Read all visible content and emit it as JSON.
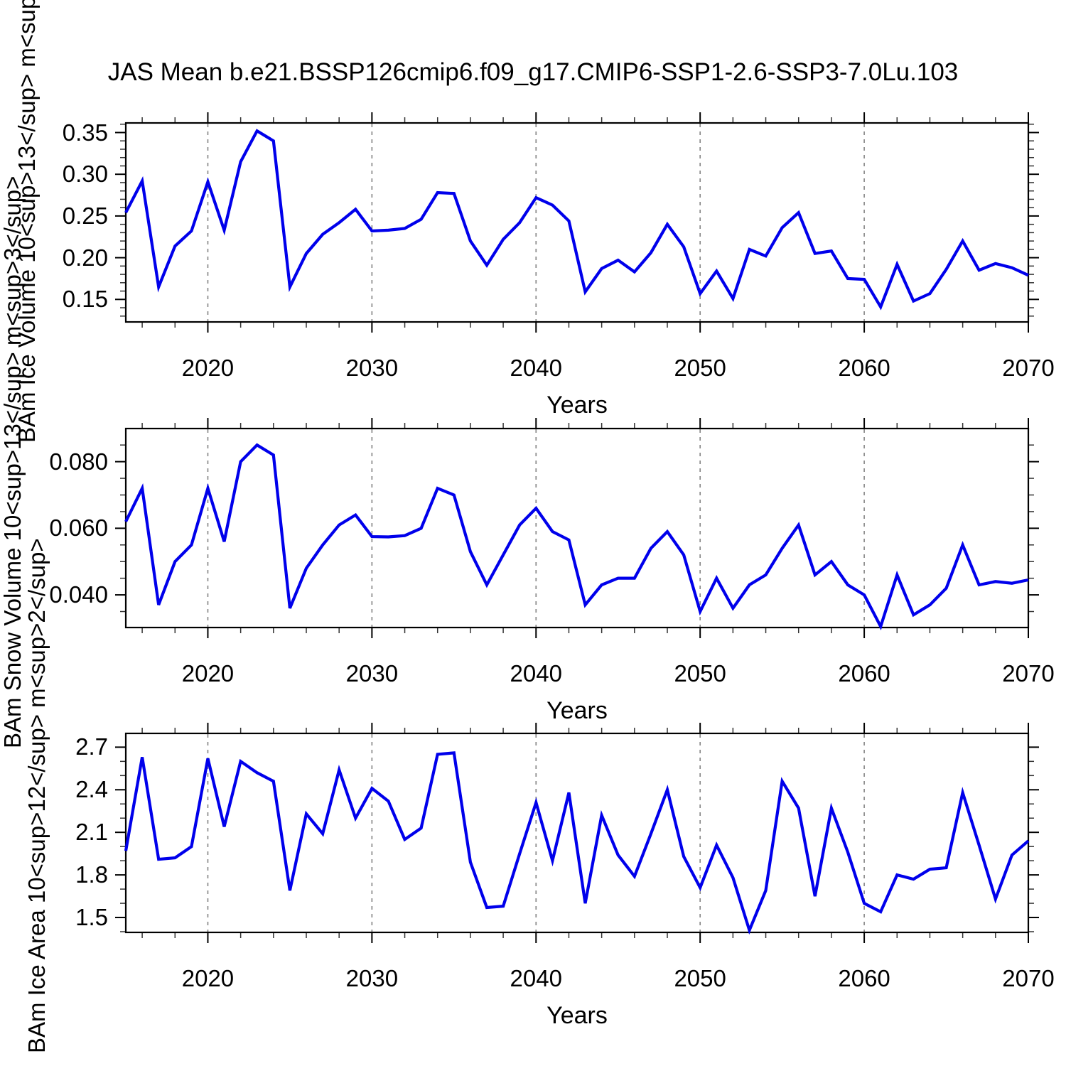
{
  "title": "JAS Mean b.e21.BSSP126cmip6.f09_g17.CMIP6-SSP1-2.6-SSP3-7.0Lu.103",
  "line_color": "#0000EB",
  "grid_color": "#8a8a8a",
  "chart_data": [
    {
      "type": "line",
      "name": "bam-ice-volume",
      "ylabel": "BAm Ice Volume 10^13 m^3",
      "xlabel": "Years",
      "xlim": [
        2015,
        2070
      ],
      "ylim": [
        0.123,
        0.3615
      ],
      "x": [
        2015,
        2016,
        2017,
        2018,
        2019,
        2020,
        2021,
        2022,
        2023,
        2024,
        2025,
        2026,
        2027,
        2028,
        2029,
        2030,
        2031,
        2032,
        2033,
        2034,
        2035,
        2036,
        2037,
        2038,
        2039,
        2040,
        2041,
        2042,
        2043,
        2044,
        2045,
        2046,
        2047,
        2048,
        2049,
        2050,
        2051,
        2052,
        2053,
        2054,
        2055,
        2056,
        2057,
        2058,
        2059,
        2060,
        2061,
        2062,
        2063,
        2064,
        2065,
        2066,
        2067,
        2068,
        2069,
        2070
      ],
      "values": [
        0.254,
        0.292,
        0.165,
        0.214,
        0.232,
        0.291,
        0.233,
        0.315,
        0.352,
        0.34,
        0.165,
        0.205,
        0.228,
        0.242,
        0.258,
        0.232,
        0.233,
        0.235,
        0.246,
        0.278,
        0.277,
        0.22,
        0.191,
        0.222,
        0.242,
        0.272,
        0.263,
        0.244,
        0.159,
        0.187,
        0.197,
        0.183,
        0.206,
        0.24,
        0.213,
        0.157,
        0.184,
        0.151,
        0.21,
        0.202,
        0.236,
        0.254,
        0.205,
        0.208,
        0.175,
        0.174,
        0.141,
        0.192,
        0.148,
        0.157,
        0.186,
        0.22,
        0.185,
        0.193,
        0.188,
        0.179
      ],
      "yticks": [
        {
          "v": 0.15,
          "label": "0.15"
        },
        {
          "v": 0.2,
          "label": "0.20"
        },
        {
          "v": 0.25,
          "label": "0.25"
        },
        {
          "v": 0.3,
          "label": "0.30"
        },
        {
          "v": 0.35,
          "label": "0.35"
        }
      ],
      "y_minor_step": 0.01,
      "xticks": [
        {
          "v": 2020,
          "label": "2020"
        },
        {
          "v": 2030,
          "label": "2030"
        },
        {
          "v": 2040,
          "label": "2040"
        },
        {
          "v": 2050,
          "label": "2050"
        },
        {
          "v": 2060,
          "label": "2060"
        },
        {
          "v": 2070,
          "label": "2070"
        }
      ],
      "x_minor_step": 2,
      "xgrid": [
        2020,
        2030,
        2040,
        2050,
        2060
      ]
    },
    {
      "type": "line",
      "name": "bam-snow-volume",
      "ylabel": "BAm Snow Volume 10^13 m^3",
      "xlabel": "Years",
      "xlim": [
        2015,
        2070
      ],
      "ylim": [
        0.0302,
        0.08995
      ],
      "x": [
        2015,
        2016,
        2017,
        2018,
        2019,
        2020,
        2021,
        2022,
        2023,
        2024,
        2025,
        2026,
        2027,
        2028,
        2029,
        2030,
        2031,
        2032,
        2033,
        2034,
        2035,
        2036,
        2037,
        2038,
        2039,
        2040,
        2041,
        2042,
        2043,
        2044,
        2045,
        2046,
        2047,
        2048,
        2049,
        2050,
        2051,
        2052,
        2053,
        2054,
        2055,
        2056,
        2057,
        2058,
        2059,
        2060,
        2061,
        2062,
        2063,
        2064,
        2065,
        2066,
        2067,
        2068,
        2069,
        2070
      ],
      "values": [
        0.062,
        0.072,
        0.037,
        0.05,
        0.055,
        0.072,
        0.056,
        0.08,
        0.085,
        0.082,
        0.036,
        0.048,
        0.055,
        0.061,
        0.064,
        0.0575,
        0.0574,
        0.0578,
        0.06,
        0.072,
        0.07,
        0.053,
        0.043,
        0.052,
        0.061,
        0.066,
        0.059,
        0.0565,
        0.037,
        0.043,
        0.045,
        0.045,
        0.054,
        0.059,
        0.052,
        0.035,
        0.045,
        0.036,
        0.043,
        0.046,
        0.054,
        0.061,
        0.046,
        0.05,
        0.043,
        0.04,
        0.0305,
        0.046,
        0.034,
        0.037,
        0.042,
        0.055,
        0.043,
        0.044,
        0.0435,
        0.0445
      ],
      "yticks": [
        {
          "v": 0.04,
          "label": "0.040"
        },
        {
          "v": 0.06,
          "label": "0.060"
        },
        {
          "v": 0.08,
          "label": "0.080"
        }
      ],
      "y_minor_step": 0.005,
      "xticks": [
        {
          "v": 2020,
          "label": "2020"
        },
        {
          "v": 2030,
          "label": "2030"
        },
        {
          "v": 2040,
          "label": "2040"
        },
        {
          "v": 2050,
          "label": "2050"
        },
        {
          "v": 2060,
          "label": "2060"
        },
        {
          "v": 2070,
          "label": "2070"
        }
      ],
      "x_minor_step": 2,
      "xgrid": [
        2020,
        2030,
        2040,
        2050,
        2060
      ]
    },
    {
      "type": "line",
      "name": "bam-ice-area",
      "ylabel": "BAm Ice Area 10^12 m^2",
      "xlabel": "Years",
      "xlim": [
        2015,
        2070
      ],
      "ylim": [
        1.395,
        2.797
      ],
      "x": [
        2015,
        2016,
        2017,
        2018,
        2019,
        2020,
        2021,
        2022,
        2023,
        2024,
        2025,
        2026,
        2027,
        2028,
        2029,
        2030,
        2031,
        2032,
        2033,
        2034,
        2035,
        2036,
        2037,
        2038,
        2039,
        2040,
        2041,
        2042,
        2043,
        2044,
        2045,
        2046,
        2047,
        2048,
        2049,
        2050,
        2051,
        2052,
        2053,
        2054,
        2055,
        2056,
        2057,
        2058,
        2059,
        2060,
        2061,
        2062,
        2063,
        2064,
        2065,
        2066,
        2067,
        2068,
        2069,
        2070
      ],
      "values": [
        1.97,
        2.63,
        1.91,
        1.92,
        2.0,
        2.62,
        2.14,
        2.6,
        2.52,
        2.46,
        1.69,
        2.23,
        2.09,
        2.54,
        2.2,
        2.41,
        2.32,
        2.05,
        2.13,
        2.65,
        2.66,
        1.89,
        1.57,
        1.58,
        1.95,
        2.31,
        1.9,
        2.38,
        1.6,
        2.22,
        1.94,
        1.79,
        2.09,
        2.4,
        1.93,
        1.71,
        2.01,
        1.78,
        1.41,
        1.69,
        2.46,
        2.27,
        1.65,
        2.27,
        1.96,
        1.6,
        1.54,
        1.8,
        1.77,
        1.84,
        1.85,
        2.38,
        2.01,
        1.63,
        1.94,
        2.04
      ],
      "yticks": [
        {
          "v": 1.5,
          "label": "1.5"
        },
        {
          "v": 1.8,
          "label": "1.8"
        },
        {
          "v": 2.1,
          "label": "2.1"
        },
        {
          "v": 2.4,
          "label": "2.4"
        },
        {
          "v": 2.7,
          "label": "2.7"
        }
      ],
      "y_minor_step": 0.1,
      "xticks": [
        {
          "v": 2020,
          "label": "2020"
        },
        {
          "v": 2030,
          "label": "2030"
        },
        {
          "v": 2040,
          "label": "2040"
        },
        {
          "v": 2050,
          "label": "2050"
        },
        {
          "v": 2060,
          "label": "2060"
        },
        {
          "v": 2070,
          "label": "2070"
        }
      ],
      "x_minor_step": 2,
      "xgrid": [
        2020,
        2030,
        2040,
        2050,
        2060
      ]
    }
  ]
}
